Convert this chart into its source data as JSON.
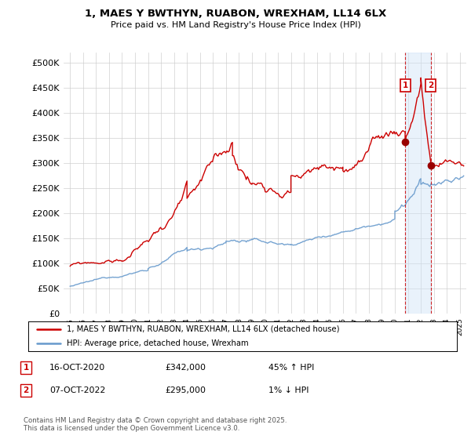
{
  "title1": "1, MAES Y BWTHYN, RUABON, WREXHAM, LL14 6LX",
  "title2": "Price paid vs. HM Land Registry's House Price Index (HPI)",
  "ylabel_ticks": [
    "£0",
    "£50K",
    "£100K",
    "£150K",
    "£200K",
    "£250K",
    "£300K",
    "£350K",
    "£400K",
    "£450K",
    "£500K"
  ],
  "ytick_vals": [
    0,
    50000,
    100000,
    150000,
    200000,
    250000,
    300000,
    350000,
    400000,
    450000,
    500000
  ],
  "ylim": [
    0,
    520000
  ],
  "xlim_start": 1994.5,
  "xlim_end": 2025.5,
  "transaction1_date": 2020.79,
  "transaction1_price": 342000,
  "transaction2_date": 2022.77,
  "transaction2_price": 295000,
  "red_line_color": "#cc0000",
  "blue_line_color": "#6699cc",
  "annotation_bg": "#ddeeff",
  "dashed_line_color": "#cc0000",
  "legend1": "1, MAES Y BWTHYN, RUABON, WREXHAM, LL14 6LX (detached house)",
  "legend2": "HPI: Average price, detached house, Wrexham",
  "annotation1_label": "1",
  "annotation1_date_str": "16-OCT-2020",
  "annotation1_price_str": "£342,000",
  "annotation1_hpi_str": "45% ↑ HPI",
  "annotation2_label": "2",
  "annotation2_date_str": "07-OCT-2022",
  "annotation2_price_str": "£295,000",
  "annotation2_hpi_str": "1% ↓ HPI",
  "footnote": "Contains HM Land Registry data © Crown copyright and database right 2025.\nThis data is licensed under the Open Government Licence v3.0.",
  "background_color": "#ffffff",
  "grid_color": "#cccccc"
}
